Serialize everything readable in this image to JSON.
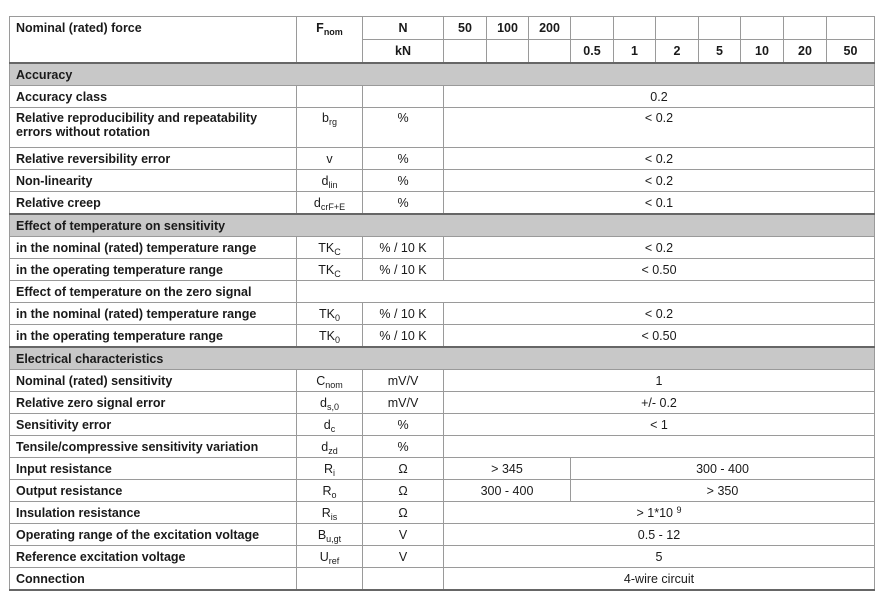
{
  "header": {
    "label": "Nominal (rated) force",
    "symbol": {
      "base": "F",
      "sub": "nom"
    },
    "unit_n": "N",
    "unit_kn": "kN",
    "n_values": [
      "50",
      "100",
      "200"
    ],
    "kn_values": [
      "0.5",
      "1",
      "2",
      "5",
      "10",
      "20",
      "50"
    ]
  },
  "rows": [
    {
      "type": "section",
      "label": "Accuracy"
    },
    {
      "type": "row",
      "label": "Accuracy class",
      "symbol": null,
      "unit": "",
      "value": "0.2"
    },
    {
      "type": "row",
      "tall": true,
      "label": "Relative reproducibility and repeatability errors without rotation",
      "symbol": {
        "base": "b",
        "sub": "rg"
      },
      "unit": "%",
      "value": "< 0.2"
    },
    {
      "type": "row",
      "label": "Relative reversibility error",
      "symbol": {
        "base": "v",
        "sub": ""
      },
      "unit": "%",
      "value": "< 0.2"
    },
    {
      "type": "row",
      "label": "Non-linearity",
      "symbol": {
        "base": "d",
        "sub": "lin"
      },
      "unit": "%",
      "value": "< 0.2"
    },
    {
      "type": "row",
      "label": "Relative creep",
      "symbol": {
        "base": "d",
        "sub": "crF+E"
      },
      "unit": "%",
      "value": "< 0.1"
    },
    {
      "type": "section",
      "label": "Effect of temperature on sensitivity"
    },
    {
      "type": "row",
      "label": "in the nominal (rated) temperature range",
      "symbol": {
        "base": "TK",
        "sub": "C"
      },
      "unit": "% / 10 K",
      "value": "< 0.2"
    },
    {
      "type": "row",
      "label": "in the operating temperature range",
      "symbol": {
        "base": "TK",
        "sub": "C"
      },
      "unit": "% / 10 K",
      "value": "< 0.50"
    },
    {
      "type": "subheader",
      "label": "Effect of temperature on the zero signal"
    },
    {
      "type": "row",
      "label": "in the nominal (rated) temperature range",
      "symbol": {
        "base": "TK",
        "sub": "0"
      },
      "unit": "% / 10 K",
      "value": "< 0.2"
    },
    {
      "type": "row",
      "label": "in the operating temperature range",
      "symbol": {
        "base": "TK",
        "sub": "0"
      },
      "unit": "% / 10 K",
      "value": "< 0.50"
    },
    {
      "type": "section",
      "label": "Electrical characteristics"
    },
    {
      "type": "row",
      "label": "Nominal (rated) sensitivity",
      "symbol": {
        "base": "C",
        "sub": "nom"
      },
      "unit": "mV/V",
      "value": "1"
    },
    {
      "type": "row",
      "label": "Relative zero signal error",
      "symbol": {
        "base": "d",
        "sub": "s,0"
      },
      "unit": "mV/V",
      "value": "+/- 0.2"
    },
    {
      "type": "row",
      "label": "Sensitivity error",
      "symbol": {
        "base": "d",
        "sub": "c"
      },
      "unit": "%",
      "value": "< 1"
    },
    {
      "type": "row",
      "label": "Tensile/compressive sensitivity variation",
      "symbol": {
        "base": "d",
        "sub": "zd"
      },
      "unit": "%",
      "value": ""
    },
    {
      "type": "row",
      "label": "Input resistance",
      "symbol": {
        "base": "R",
        "sub": "i"
      },
      "unit": "Ω",
      "split": [
        "> 345",
        "300 - 400"
      ]
    },
    {
      "type": "row",
      "label": "Output resistance",
      "symbol": {
        "base": "R",
        "sub": "o"
      },
      "unit": "Ω",
      "split": [
        "300 - 400",
        "> 350"
      ]
    },
    {
      "type": "row",
      "label": "Insulation resistance",
      "symbol": {
        "base": "R",
        "sub": "is"
      },
      "unit": "Ω",
      "value": "> 1*10",
      "value_sup": "9"
    },
    {
      "type": "row",
      "label": "Operating range of the excitation voltage",
      "symbol": {
        "base": "B",
        "sub": "u,gt"
      },
      "unit": "V",
      "value": "0.5 - 12"
    },
    {
      "type": "row",
      "label": "Reference excitation voltage",
      "symbol": {
        "base": "U",
        "sub": "ref"
      },
      "unit": "V",
      "value": "5"
    },
    {
      "type": "row",
      "label": "Connection",
      "symbol": null,
      "unit": "",
      "value": "4-wire circuit"
    }
  ]
}
